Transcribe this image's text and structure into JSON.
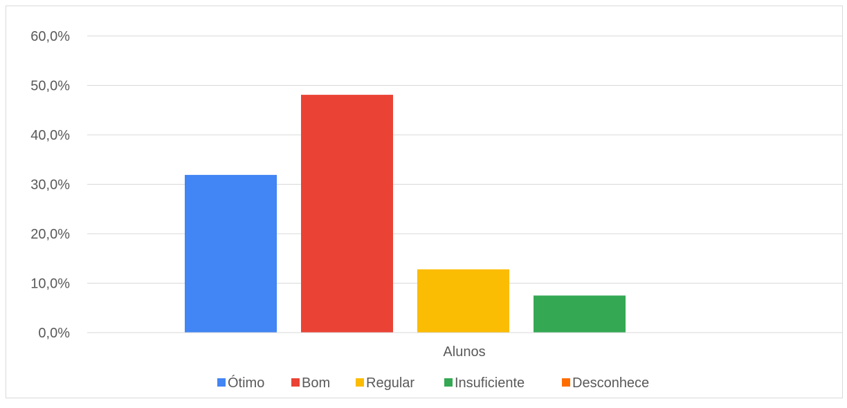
{
  "chart_data": {
    "type": "bar",
    "categories": [
      "Alunos"
    ],
    "series": [
      {
        "name": "Ótimo",
        "values": [
          31.9
        ],
        "color": "#4285F4"
      },
      {
        "name": "Bom",
        "values": [
          48.1
        ],
        "color": "#EA4335"
      },
      {
        "name": "Regular",
        "values": [
          12.8
        ],
        "color": "#FBBC04"
      },
      {
        "name": "Insuficiente",
        "values": [
          7.5
        ],
        "color": "#34A853"
      },
      {
        "name": "Desconhece",
        "values": [
          0.0
        ],
        "color": "#FF6D01"
      }
    ],
    "y_ticks": [
      "0,0%",
      "10,0%",
      "20,0%",
      "30,0%",
      "40,0%",
      "50,0%",
      "60,0%"
    ],
    "ylim": [
      0,
      60
    ],
    "grid": true,
    "legend_position": "bottom"
  }
}
